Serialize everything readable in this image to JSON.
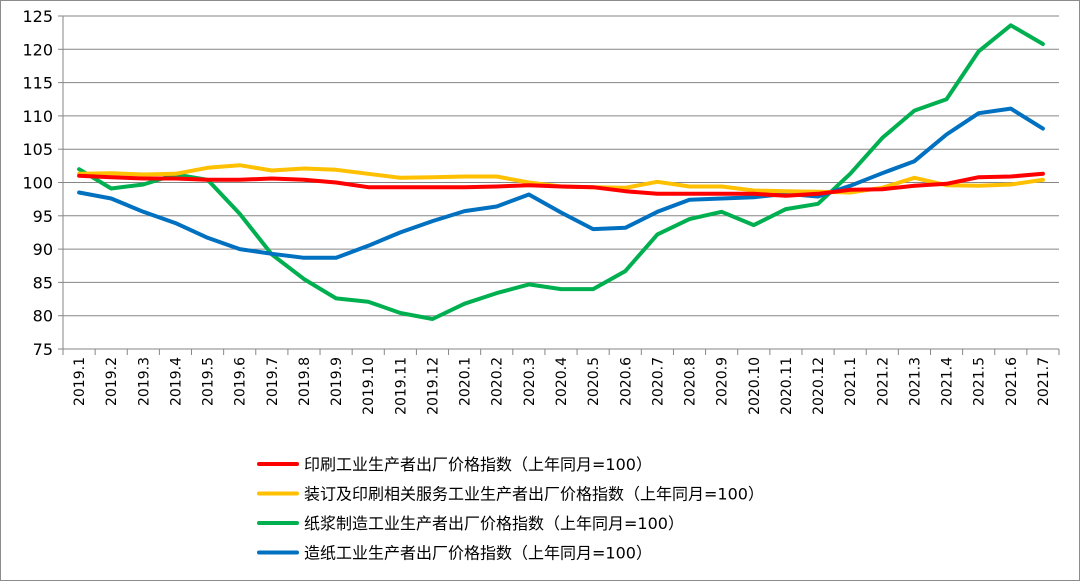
{
  "chart_data": {
    "type": "line",
    "title": "",
    "xlabel": "",
    "ylabel": "",
    "ylim": [
      75,
      125
    ],
    "yticks": [
      75,
      80,
      85,
      90,
      95,
      100,
      105,
      110,
      115,
      120,
      125
    ],
    "grid": true,
    "legend_position": "bottom",
    "categories": [
      "2019.1",
      "2019.2",
      "2019.3",
      "2019.4",
      "2019.5",
      "2019.6",
      "2019.7",
      "2019.8",
      "2019.9",
      "2019.10",
      "2019.11",
      "2019.12",
      "2020.1",
      "2020.2",
      "2020.3",
      "2020.4",
      "2020.5",
      "2020.6",
      "2020.7",
      "2020.8",
      "2020.9",
      "2020.10",
      "2020.11",
      "2020.12",
      "2021.1",
      "2021.2",
      "2021.3",
      "2021.4",
      "2021.5",
      "2021.6",
      "2021.7"
    ],
    "series": [
      {
        "name": "印刷工业生产者出厂价格指数（上年同月=100）",
        "color": "#ff0000",
        "values": [
          101.0,
          100.8,
          100.6,
          100.6,
          100.4,
          100.4,
          100.6,
          100.4,
          100.0,
          99.3,
          99.3,
          99.3,
          99.3,
          99.4,
          99.6,
          99.4,
          99.3,
          98.7,
          98.3,
          98.3,
          98.3,
          98.3,
          98.0,
          98.3,
          98.9,
          99.0,
          99.5,
          99.8,
          100.8,
          100.9,
          101.3
        ]
      },
      {
        "name": "装订及印刷相关服务工业生产者出厂价格指数（上年同月=100）",
        "color": "#ffc000",
        "values": [
          101.3,
          101.4,
          101.2,
          101.3,
          102.2,
          102.6,
          101.8,
          102.1,
          101.9,
          101.3,
          100.7,
          100.8,
          100.9,
          100.9,
          100.0,
          99.4,
          99.3,
          99.2,
          100.1,
          99.4,
          99.4,
          98.8,
          98.7,
          98.6,
          98.5,
          99.2,
          100.7,
          99.6,
          99.5,
          99.7,
          100.4
        ]
      },
      {
        "name": "纸浆制造工业生产者出厂价格指数（上年同月=100）",
        "color": "#00b050",
        "values": [
          102.0,
          99.1,
          99.7,
          101.2,
          100.4,
          95.3,
          89.2,
          85.5,
          82.6,
          82.1,
          80.4,
          79.5,
          81.8,
          83.4,
          84.7,
          84.0,
          84.0,
          86.7,
          92.2,
          94.5,
          95.6,
          93.6,
          96.0,
          96.8,
          101.3,
          106.7,
          110.8,
          112.5,
          119.7,
          123.6,
          120.8
        ]
      },
      {
        "name": "造纸工业生产者出厂价格指数（上年同月=100）",
        "color": "#0070c0",
        "values": [
          98.5,
          97.6,
          95.6,
          93.9,
          91.7,
          90.0,
          89.3,
          88.7,
          88.7,
          90.5,
          92.5,
          94.2,
          95.7,
          96.4,
          98.2,
          95.5,
          93.0,
          93.2,
          95.6,
          97.4,
          97.6,
          97.8,
          98.3,
          97.9,
          99.5,
          101.4,
          103.2,
          107.2,
          110.4,
          111.1,
          108.1
        ]
      }
    ]
  }
}
